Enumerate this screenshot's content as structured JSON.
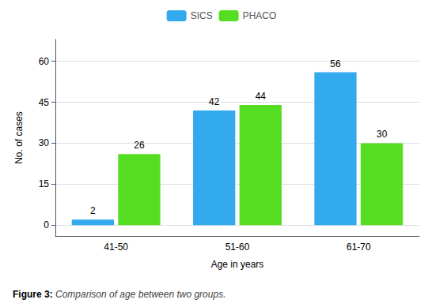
{
  "chart_data": {
    "type": "bar",
    "categories": [
      "41-50",
      "51-60",
      "61-70"
    ],
    "series": [
      {
        "name": "SICS",
        "color": "#33aaee",
        "values": [
          2,
          42,
          56
        ]
      },
      {
        "name": "PHACO",
        "color": "#55dd22",
        "values": [
          26,
          44,
          30
        ]
      }
    ],
    "xlabel": "Age in years",
    "ylabel": "No. of cases",
    "ylim": [
      -4,
      68
    ],
    "yticks": [
      0,
      15,
      30,
      45,
      60
    ],
    "grid": true,
    "data_labels": true,
    "legend": "top",
    "annotations": [
      "Figure 3:",
      "Comparison of age between two groups."
    ]
  }
}
